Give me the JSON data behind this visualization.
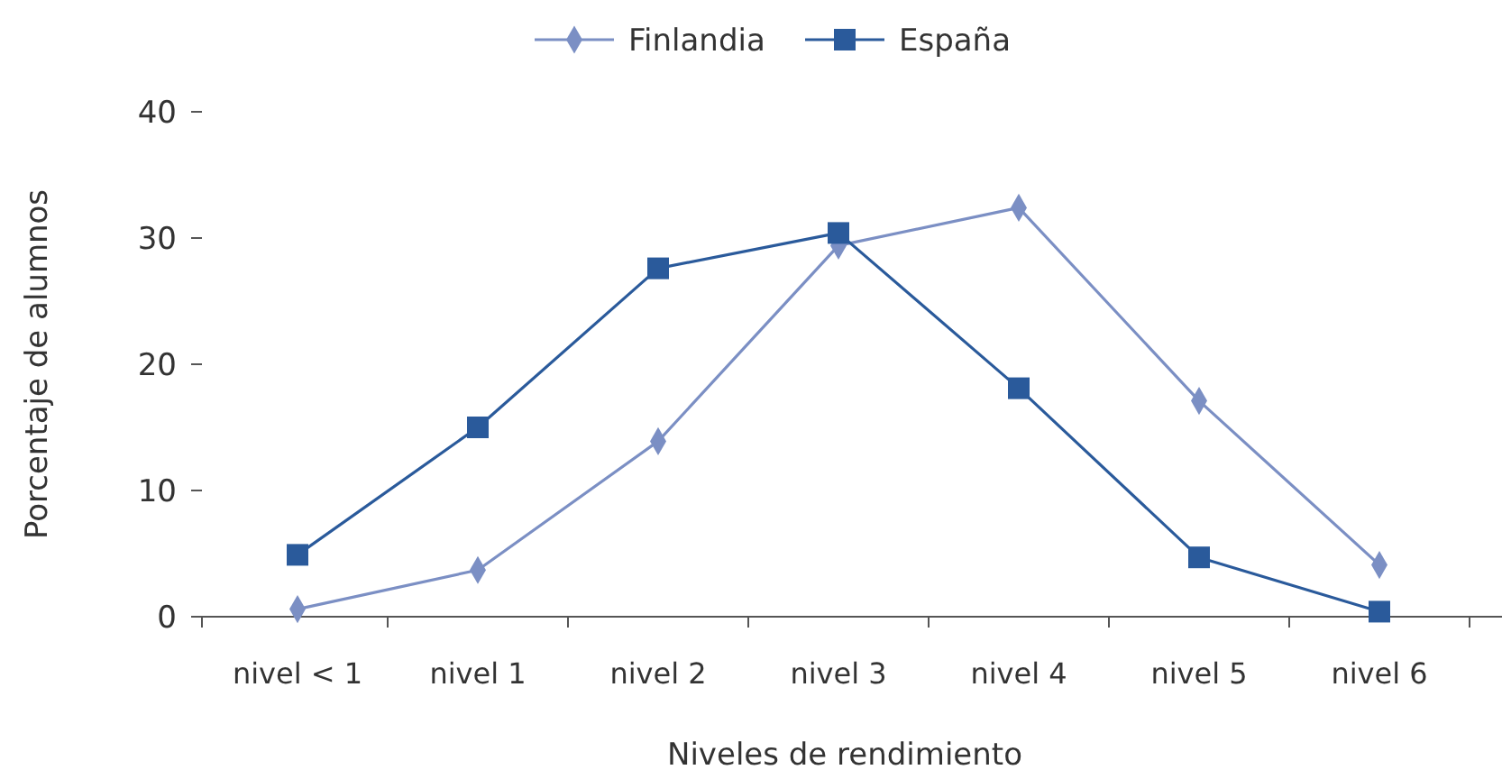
{
  "chart_data": {
    "type": "line",
    "xlabel": "Niveles de rendimiento",
    "ylabel": "Porcentaje de alumnos",
    "categories": [
      "nivel < 1",
      "nivel 1",
      "nivel 2",
      "nivel 3",
      "nivel 4",
      "nivel 5",
      "nivel 6"
    ],
    "series": [
      {
        "name": "Finlandia",
        "color": "#7b8fc4",
        "marker": "diamond",
        "values": [
          0.6,
          3.7,
          13.9,
          29.4,
          32.4,
          17.1,
          4.1
        ]
      },
      {
        "name": "España",
        "color": "#2a5a9b",
        "marker": "square",
        "values": [
          4.9,
          15,
          27.6,
          30.4,
          18.1,
          4.7,
          0.4
        ]
      }
    ],
    "ylim": [
      0,
      40
    ],
    "yticks": [
      0,
      10,
      20,
      30,
      40
    ],
    "grid": false,
    "legend": "top"
  }
}
